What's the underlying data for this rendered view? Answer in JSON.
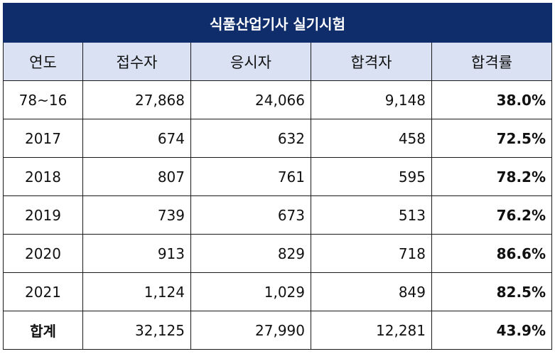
{
  "table": {
    "title": "식품산업기사 실기시험",
    "columns": [
      "연도",
      "접수자",
      "응시자",
      "합격자",
      "합격률"
    ],
    "rows": [
      {
        "year": "78~16",
        "applicants": "27,868",
        "examinees": "24,066",
        "passers": "9,148",
        "rate": "38.0%"
      },
      {
        "year": "2017",
        "applicants": "674",
        "examinees": "632",
        "passers": "458",
        "rate": "72.5%"
      },
      {
        "year": "2018",
        "applicants": "807",
        "examinees": "761",
        "passers": "595",
        "rate": "78.2%"
      },
      {
        "year": "2019",
        "applicants": "739",
        "examinees": "673",
        "passers": "513",
        "rate": "76.2%"
      },
      {
        "year": "2020",
        "applicants": "913",
        "examinees": "829",
        "passers": "718",
        "rate": "86.6%"
      },
      {
        "year": "2021",
        "applicants": "1,124",
        "examinees": "1,029",
        "passers": "849",
        "rate": "82.5%"
      }
    ],
    "total": {
      "year": "합계",
      "applicants": "32,125",
      "examinees": "27,990",
      "passers": "12,281",
      "rate": "43.9%"
    }
  },
  "colors": {
    "title_bg": "#0f2d6b",
    "header_bg": "#d9e1f2",
    "border": "#1a1a1a"
  }
}
